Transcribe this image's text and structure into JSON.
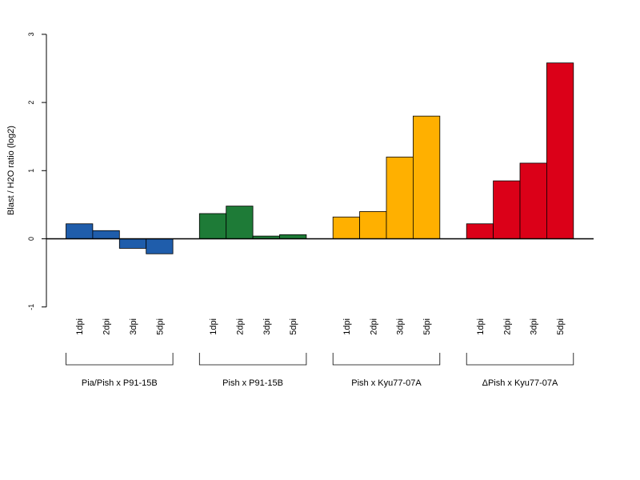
{
  "chart_data": {
    "type": "bar",
    "ylabel": "Blast / H2O ratio (log2)",
    "ylim": [
      -1,
      3
    ],
    "yticks": [
      "-1",
      "0",
      "1",
      "2",
      "3"
    ],
    "groups": [
      {
        "name": "Pia/Pish x P91-15B",
        "color": "#1F5DAB",
        "categories": [
          "1dpi",
          "2dpi",
          "3dpi",
          "5dpi"
        ],
        "values": [
          0.22,
          0.12,
          -0.14,
          -0.22
        ]
      },
      {
        "name": "Pish x P91-15B",
        "color": "#1E7B37",
        "categories": [
          "1dpi",
          "2dpi",
          "3dpi",
          "5dpi"
        ],
        "values": [
          0.37,
          0.48,
          0.04,
          0.06
        ]
      },
      {
        "name": "Pish x Kyu77-07A",
        "color": "#FFB000",
        "categories": [
          "1dpi",
          "2dpi",
          "3dpi",
          "5dpi"
        ],
        "values": [
          0.32,
          0.4,
          1.2,
          1.8
        ]
      },
      {
        "name": "ΔPish x Kyu77-07A",
        "color": "#DB0018",
        "categories": [
          "1dpi",
          "2dpi",
          "3dpi",
          "5dpi"
        ],
        "values": [
          0.22,
          0.85,
          1.11,
          2.58
        ]
      }
    ]
  }
}
